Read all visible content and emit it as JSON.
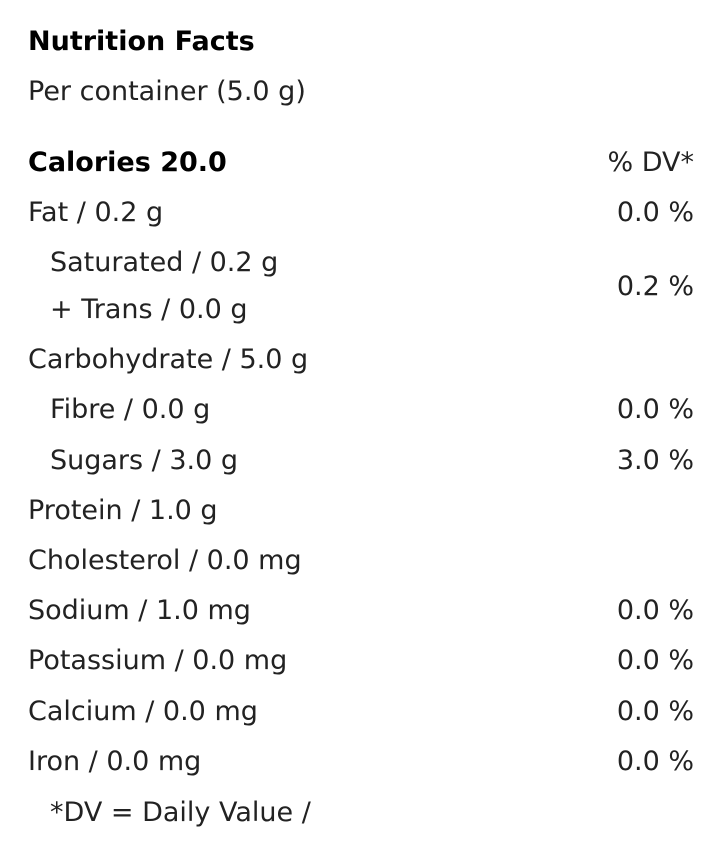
{
  "title": "Nutrition Facts",
  "serving": "Per container (5.0 g)",
  "calories": "Calories 20.0",
  "dv_header": "% DV*",
  "rows": [
    {
      "label": "Fat / 0.2 g",
      "dv": "0.0 %"
    },
    {
      "label": "Saturated / 0.2 g",
      "label2": "+ Trans / 0.0 g",
      "dv": "0.2 %"
    },
    {
      "label": "Carbohydrate / 5.0 g"
    },
    {
      "label": "Fibre / 0.0 g",
      "dv": "0.0 %"
    },
    {
      "label": "Sugars / 3.0 g",
      "dv": "3.0 %"
    },
    {
      "label": "Protein / 1.0 g"
    },
    {
      "label": "Cholesterol / 0.0 mg"
    },
    {
      "label": "Sodium / 1.0 mg",
      "dv": "0.0 %"
    },
    {
      "label": "Potassium / 0.0 mg",
      "dv": "0.0 %"
    },
    {
      "label": "Calcium / 0.0 mg",
      "dv": "0.0 %"
    },
    {
      "label": "Iron / 0.0 mg",
      "dv": "0.0 %"
    }
  ],
  "footnote": "*DV = Daily Value /"
}
